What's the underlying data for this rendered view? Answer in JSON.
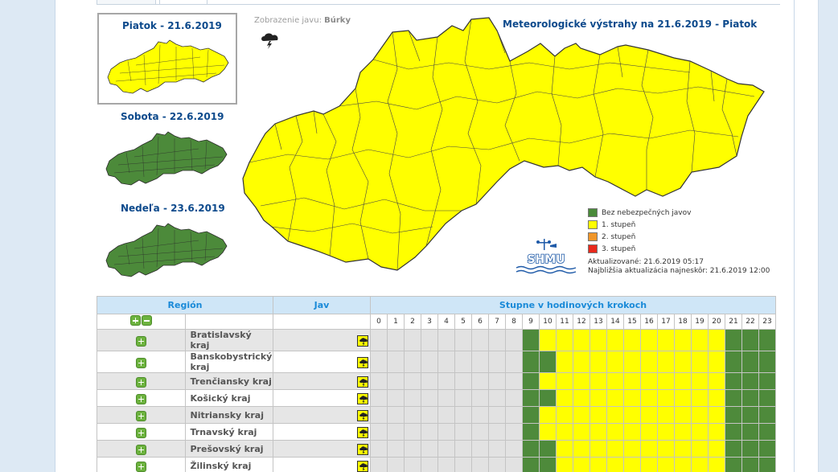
{
  "thumbnails": [
    {
      "title": "Piatok - 21.6.2019",
      "selected": true,
      "color": "#ffff00"
    },
    {
      "title": "Sobota - 22.6.2019",
      "selected": false,
      "color": "#4c8a3a"
    },
    {
      "title": "Nedeľa - 23.6.2019",
      "selected": false,
      "color": "#4c8a3a"
    }
  ],
  "phenomenon": {
    "label": "Zobrazenie javu:",
    "value": "Búrky",
    "icon": "thunderstorm-icon"
  },
  "map": {
    "title": "Meteorologické výstrahy na 21.6.2019 - Piatok",
    "fill": "#ffff00"
  },
  "legend": [
    {
      "label": "Bez nebezpečných javov",
      "color": "#4a8a3a"
    },
    {
      "label": "1. stupeň",
      "color": "#ffff00"
    },
    {
      "label": "2. stupeň",
      "color": "#f0962a"
    },
    {
      "label": "3. stupeň",
      "color": "#e8291c"
    }
  ],
  "updated": {
    "line1": "Aktualizované: 21.6.2019 05:17",
    "line2": "Najbližšia aktualizácia najneskôr: 21.6.2019 12:00"
  },
  "logo": {
    "text": "SHMU"
  },
  "table": {
    "headers": {
      "region": "Región",
      "jav": "Jav",
      "stupne": "Stupne v hodinových krokoch"
    },
    "hours": [
      "0",
      "1",
      "2",
      "3",
      "4",
      "5",
      "6",
      "7",
      "8",
      "9",
      "10",
      "11",
      "12",
      "13",
      "14",
      "15",
      "16",
      "17",
      "18",
      "19",
      "20",
      "21",
      "22",
      "23"
    ],
    "colors": {
      "past": "#e2e2e2",
      "G": "#4e8a3b",
      "Y": "#ffff00"
    },
    "rows": [
      {
        "name": "Bratislavský kraj",
        "cells": "PPPPPPPPPGYYYYYYYYYYYGGG"
      },
      {
        "name": "Banskobystrický kraj",
        "cells": "PPPPPPPPPGGYYYYYYYYYYGGG"
      },
      {
        "name": "Trenčiansky kraj",
        "cells": "PPPPPPPPPGYYYYYYYYYYYGGG"
      },
      {
        "name": "Košický kraj",
        "cells": "PPPPPPPPPGGYYYYYYYYYYGGG"
      },
      {
        "name": "Nitriansky kraj",
        "cells": "PPPPPPPPPGYYYYYYYYYYYGGG"
      },
      {
        "name": "Trnavský kraj",
        "cells": "PPPPPPPPPGYYYYYYYYYYYGGG"
      },
      {
        "name": "Prešovský kraj",
        "cells": "PPPPPPPPPGGYYYYYYYYYYGGG"
      },
      {
        "name": "Žilinský kraj",
        "cells": "PPPPPPPPPGGYYYYYYYYYYGGG"
      }
    ]
  }
}
